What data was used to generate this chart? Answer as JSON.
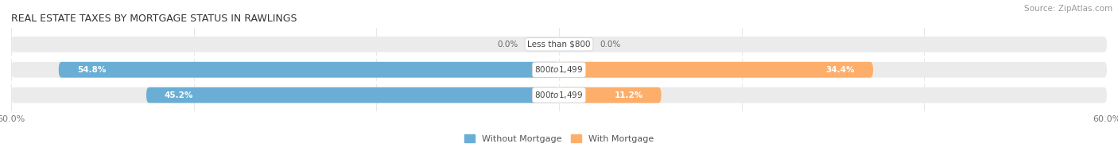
{
  "title": "REAL ESTATE TAXES BY MORTGAGE STATUS IN RAWLINGS",
  "source": "Source: ZipAtlas.com",
  "rows": [
    {
      "label": "Less than $800",
      "without_mortgage": 0.0,
      "with_mortgage": 0.0
    },
    {
      "label": "$800 to $1,499",
      "without_mortgage": 54.8,
      "with_mortgage": 34.4
    },
    {
      "label": "$800 to $1,499",
      "without_mortgage": 45.2,
      "with_mortgage": 11.2
    }
  ],
  "xlim": 60.0,
  "color_without": "#6AAED6",
  "color_with": "#FDAE6B",
  "bar_height": 0.62,
  "bg_bar": "#EBEBEB",
  "bg_fig": "#FFFFFF",
  "tick_label_color": "#777777",
  "title_fontsize": 9.0,
  "source_fontsize": 7.5,
  "label_fontsize": 7.5,
  "value_fontsize": 7.5,
  "legend_fontsize": 8.0,
  "axis_label_fontsize": 8.0,
  "legend_entries": [
    "Without Mortgage",
    "With Mortgage"
  ]
}
